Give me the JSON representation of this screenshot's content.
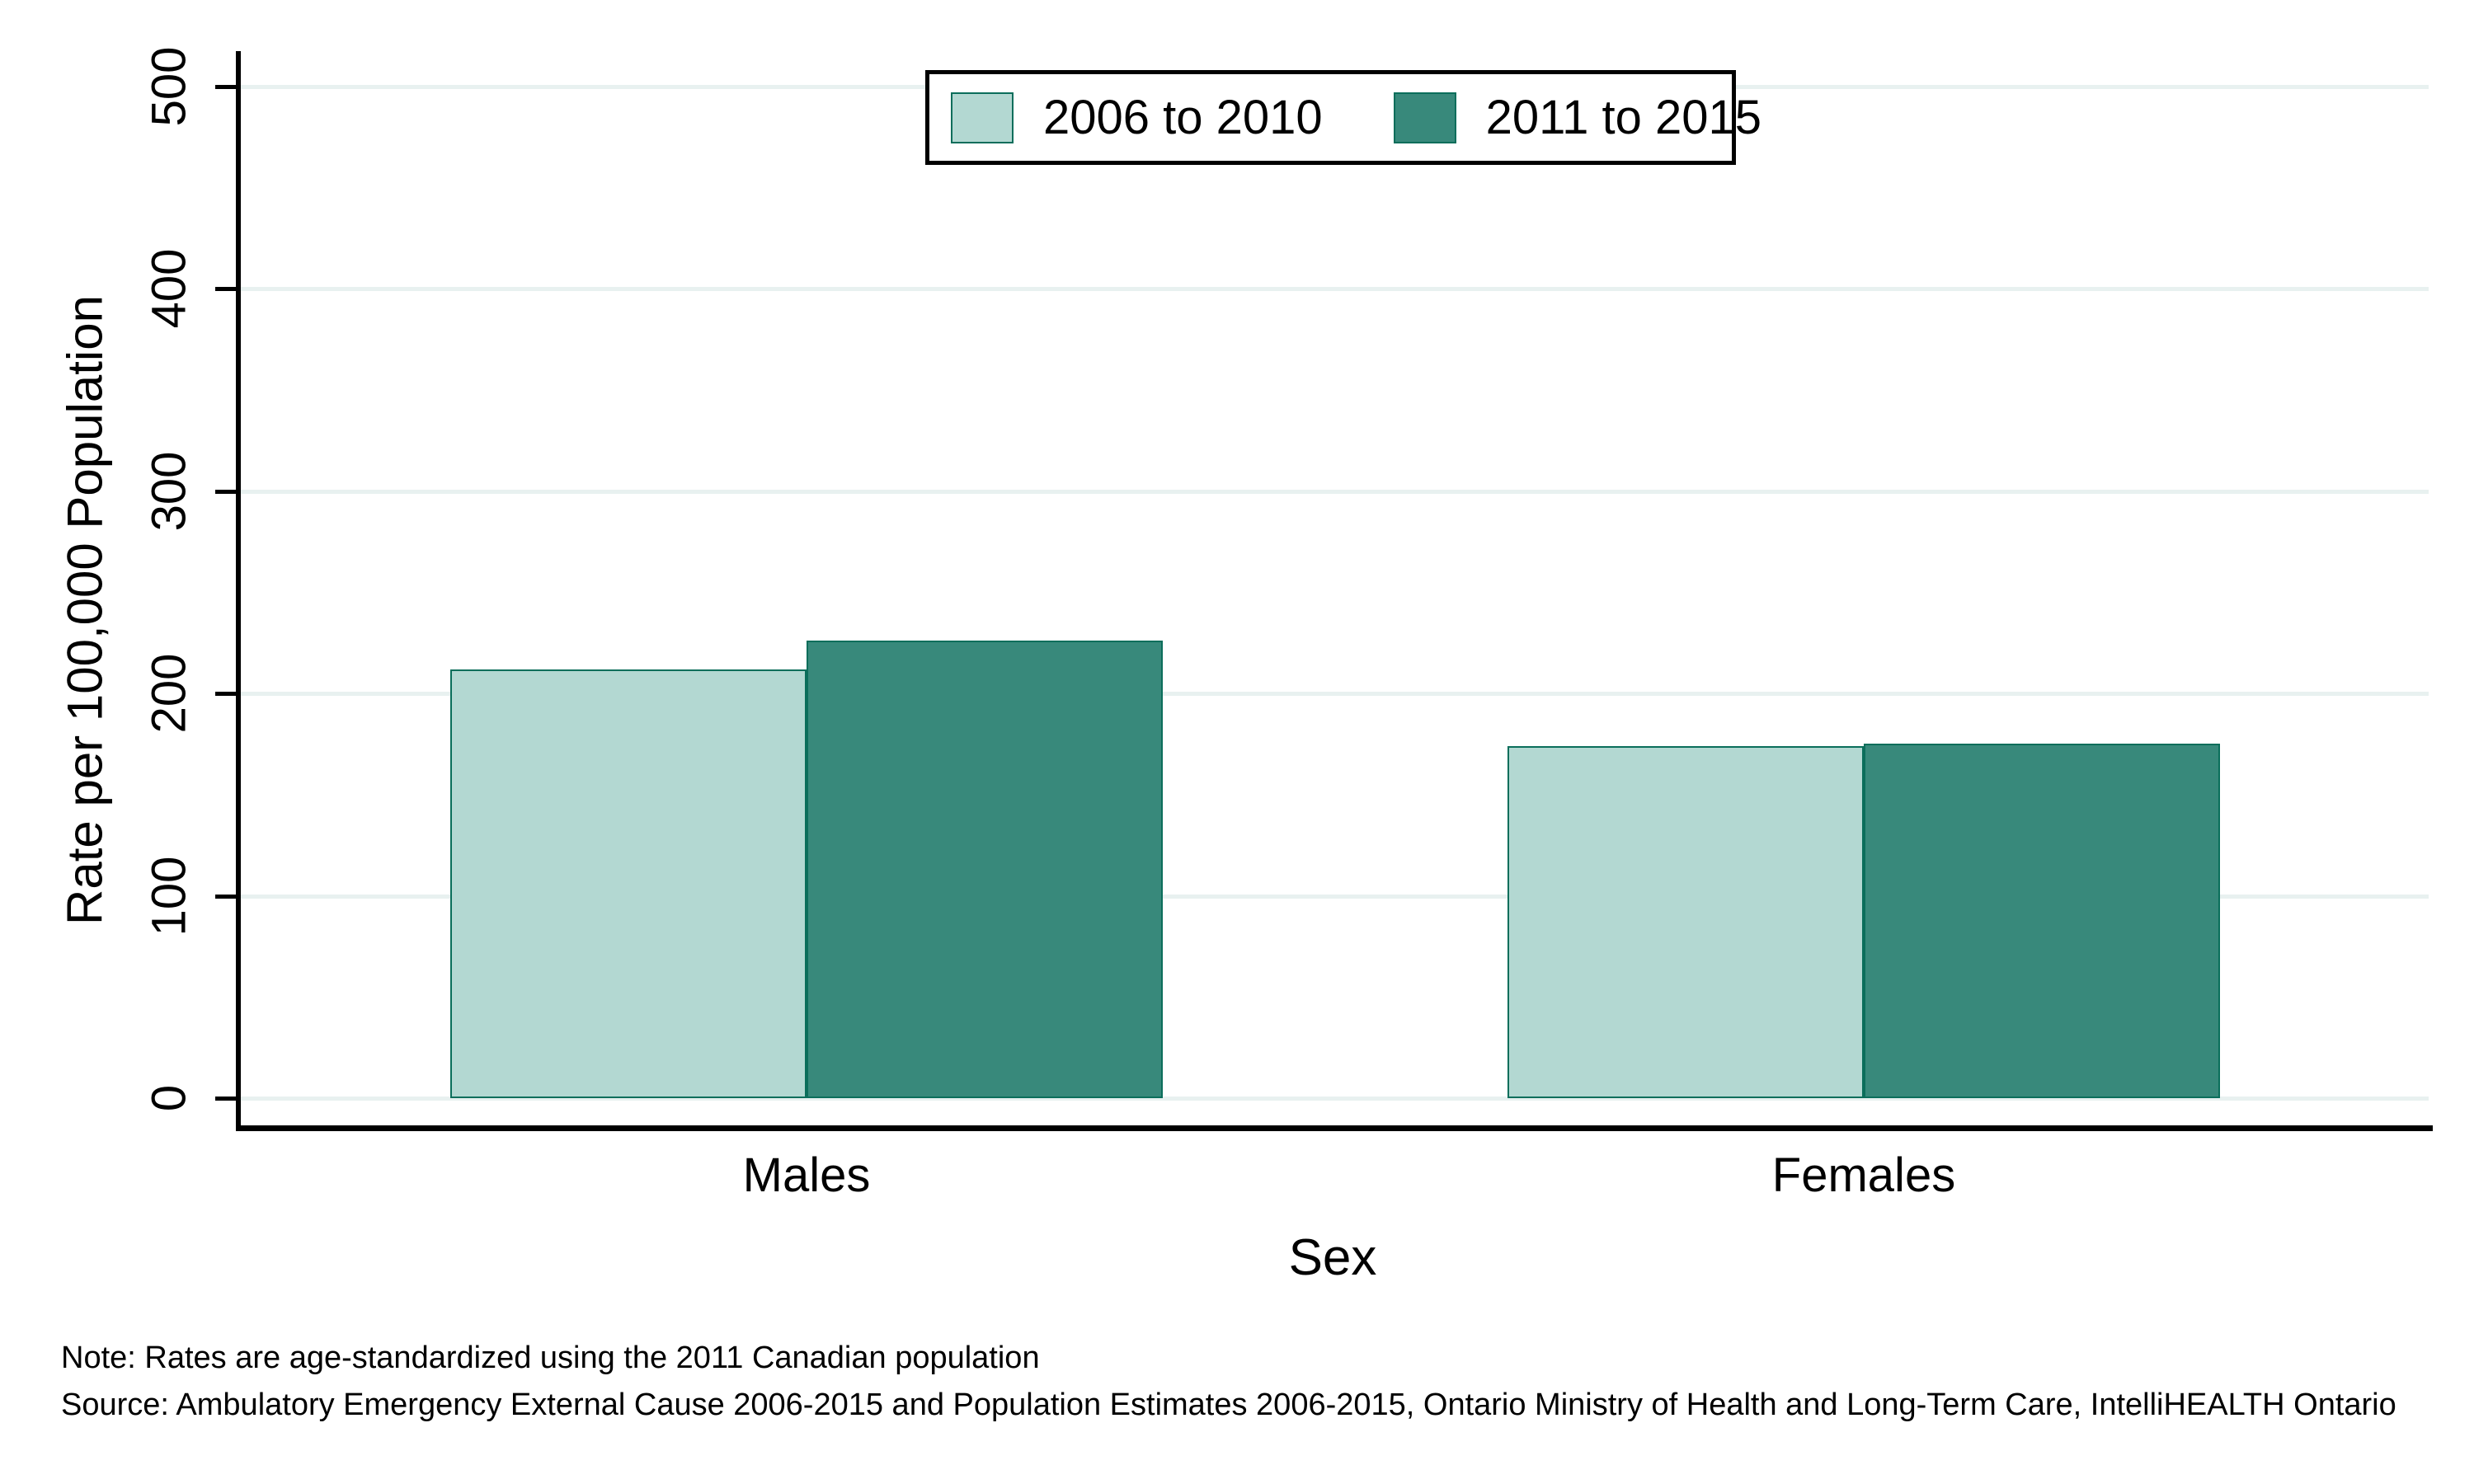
{
  "chart_data": {
    "type": "bar",
    "title": "",
    "categories": [
      "Males",
      "Females"
    ],
    "series": [
      {
        "name": "2006 to 2010",
        "color": "#b3d8d2",
        "values": [
          212,
          174
        ]
      },
      {
        "name": "2011 to 2015",
        "color": "#38897b",
        "values": [
          226,
          175
        ]
      }
    ],
    "bar_border_color": "#0b6e5b",
    "xlabel": "Sex",
    "ylabel": "Rate per 100,000 Population",
    "ylim": [
      0,
      500
    ],
    "yticks": [
      0,
      100,
      200,
      300,
      400,
      500
    ],
    "grid": "horizontal",
    "gridline_color": "#e8f1f0",
    "axis_color": "#000000",
    "legend_position": "top-center"
  },
  "notes": {
    "note": "Note: Rates are age-standardized using the 2011 Canadian population",
    "source": "Source: Ambulatory Emergency External Cause 2006-2015 and Population Estimates 2006-2015, Ontario Ministry of Health and Long-Term Care, IntelliHEALTH Ontario"
  }
}
